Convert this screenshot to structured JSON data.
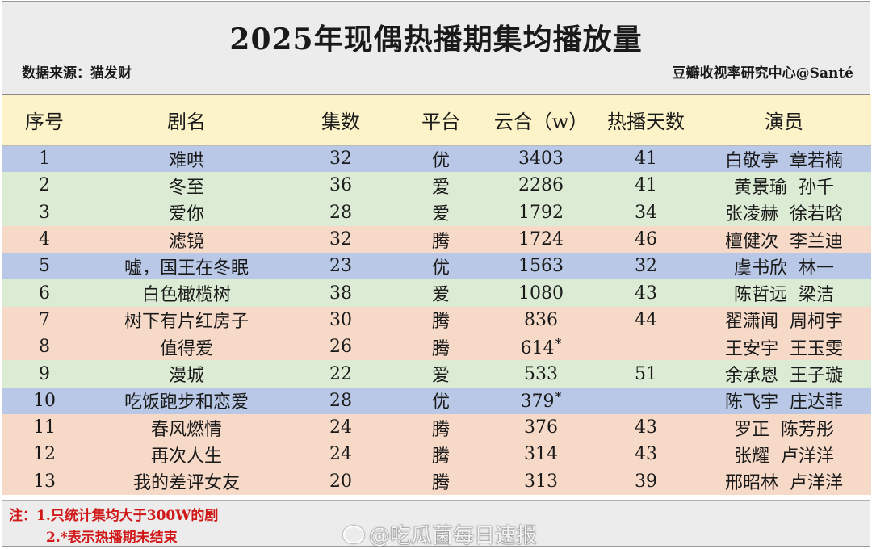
{
  "title": "2025年现偶热播期集均播放量",
  "source": "数据来源：猫发财",
  "credit": "豆瓣收视率研究中心@Santé",
  "columns": [
    "序号",
    "剧名",
    "集数",
    "平台",
    "云合（w）",
    "热播天数",
    "演员"
  ],
  "rows": [
    {
      "no": "1",
      "name": "难哄",
      "eps": "32",
      "platform": "优",
      "yunhe": "3403",
      "star": "",
      "days": "41",
      "actor1": "白敬亭",
      "actor2": "章若楠",
      "color": "c-blue"
    },
    {
      "no": "2",
      "name": "冬至",
      "eps": "36",
      "platform": "爱",
      "yunhe": "2286",
      "star": "",
      "days": "41",
      "actor1": "黄景瑜",
      "actor2": "孙千",
      "color": "c-green"
    },
    {
      "no": "3",
      "name": "爱你",
      "eps": "28",
      "platform": "爱",
      "yunhe": "1792",
      "star": "",
      "days": "34",
      "actor1": "张凌赫",
      "actor2": "徐若晗",
      "color": "c-green"
    },
    {
      "no": "4",
      "name": "滤镜",
      "eps": "32",
      "platform": "腾",
      "yunhe": "1724",
      "star": "",
      "days": "46",
      "actor1": "檀健次",
      "actor2": "李兰迪",
      "color": "c-orange"
    },
    {
      "no": "5",
      "name": "嘘，国王在冬眠",
      "eps": "23",
      "platform": "优",
      "yunhe": "1563",
      "star": "",
      "days": "32",
      "actor1": "虞书欣",
      "actor2": "林一",
      "color": "c-blue"
    },
    {
      "no": "6",
      "name": "白色橄榄树",
      "eps": "38",
      "platform": "爱",
      "yunhe": "1080",
      "star": "",
      "days": "43",
      "actor1": "陈哲远",
      "actor2": "梁洁",
      "color": "c-green"
    },
    {
      "no": "7",
      "name": "树下有片红房子",
      "eps": "30",
      "platform": "腾",
      "yunhe": "836",
      "star": "",
      "days": "44",
      "actor1": "翟潇闻",
      "actor2": "周柯宇",
      "color": "c-orange"
    },
    {
      "no": "8",
      "name": "值得爱",
      "eps": "26",
      "platform": "腾",
      "yunhe": "614",
      "star": "*",
      "days": "",
      "actor1": "王安宇",
      "actor2": "王玉雯",
      "color": "c-orange"
    },
    {
      "no": "9",
      "name": "漫城",
      "eps": "22",
      "platform": "爱",
      "yunhe": "533",
      "star": "",
      "days": "51",
      "actor1": "余承恩",
      "actor2": "王子璇",
      "color": "c-green"
    },
    {
      "no": "10",
      "name": "吃饭跑步和恋爱",
      "eps": "28",
      "platform": "优",
      "yunhe": "379",
      "star": "*",
      "days": "",
      "actor1": "陈飞宇",
      "actor2": "庄达菲",
      "color": "c-blue"
    },
    {
      "no": "11",
      "name": "春风燃情",
      "eps": "24",
      "platform": "腾",
      "yunhe": "376",
      "star": "",
      "days": "43",
      "actor1": "罗正",
      "actor2": "陈芳彤",
      "color": "c-orange"
    },
    {
      "no": "12",
      "name": "再次人生",
      "eps": "24",
      "platform": "腾",
      "yunhe": "314",
      "star": "",
      "days": "43",
      "actor1": "张耀",
      "actor2": "卢洋洋",
      "color": "c-orange"
    },
    {
      "no": "13",
      "name": "我的差评女友",
      "eps": "20",
      "platform": "腾",
      "yunhe": "313",
      "star": "",
      "days": "39",
      "actor1": "邢昭林",
      "actor2": "卢洋洋",
      "color": "c-orange"
    }
  ],
  "notes": {
    "line1": "注：1.只统计集均大于300W的剧",
    "line2": "2.*表示热播期未结束"
  },
  "watermark": "@吃瓜菌每日速报",
  "icons": {
    "watermark": "weibo-icon"
  }
}
